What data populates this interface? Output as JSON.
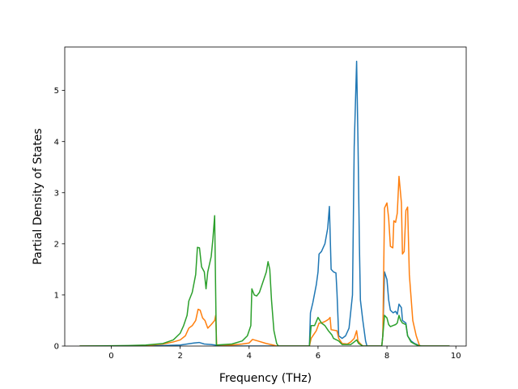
{
  "chart_data": {
    "type": "line",
    "title": "",
    "xlabel": "Frequency (THz)",
    "ylabel": "Partial Density of States",
    "xlim": [
      -1.35,
      10.3
    ],
    "ylim": [
      0,
      5.85
    ],
    "xticks": [
      0,
      2,
      4,
      6,
      8,
      10
    ],
    "yticks": [
      0,
      1,
      2,
      3,
      4,
      5
    ],
    "grid": false,
    "legend": "none",
    "series": [
      {
        "color": "#1f77b4",
        "points": [
          [
            -0.9,
            0
          ],
          [
            1.0,
            0.0
          ],
          [
            1.5,
            0.01
          ],
          [
            2.0,
            0.02
          ],
          [
            2.2,
            0.04
          ],
          [
            2.4,
            0.06
          ],
          [
            2.55,
            0.07
          ],
          [
            2.7,
            0.04
          ],
          [
            2.9,
            0.03
          ],
          [
            3.02,
            0.02
          ],
          [
            3.05,
            0
          ],
          [
            3.4,
            0
          ],
          [
            4.0,
            0
          ],
          [
            4.4,
            0
          ],
          [
            4.8,
            0
          ],
          [
            5.75,
            0
          ],
          [
            5.78,
            0.65
          ],
          [
            5.85,
            0.85
          ],
          [
            5.95,
            1.2
          ],
          [
            6.0,
            1.45
          ],
          [
            6.03,
            1.8
          ],
          [
            6.1,
            1.85
          ],
          [
            6.2,
            2.0
          ],
          [
            6.28,
            2.3
          ],
          [
            6.33,
            2.73
          ],
          [
            6.38,
            1.5
          ],
          [
            6.45,
            1.45
          ],
          [
            6.52,
            1.43
          ],
          [
            6.55,
            1.05
          ],
          [
            6.6,
            0.2
          ],
          [
            6.7,
            0.15
          ],
          [
            6.8,
            0.2
          ],
          [
            6.9,
            0.35
          ],
          [
            7.0,
            1.0
          ],
          [
            7.05,
            3.9
          ],
          [
            7.12,
            5.57
          ],
          [
            7.16,
            4.0
          ],
          [
            7.2,
            2.0
          ],
          [
            7.23,
            0.9
          ],
          [
            7.3,
            0.5
          ],
          [
            7.38,
            0.1
          ],
          [
            7.42,
            0
          ],
          [
            7.85,
            0
          ],
          [
            7.88,
            0.2
          ],
          [
            7.93,
            1.45
          ],
          [
            8.0,
            1.3
          ],
          [
            8.05,
            0.9
          ],
          [
            8.1,
            0.7
          ],
          [
            8.18,
            0.65
          ],
          [
            8.25,
            0.68
          ],
          [
            8.3,
            0.62
          ],
          [
            8.35,
            0.82
          ],
          [
            8.42,
            0.75
          ],
          [
            8.45,
            0.5
          ],
          [
            8.55,
            0.45
          ],
          [
            8.6,
            0.2
          ],
          [
            8.7,
            0.1
          ],
          [
            8.8,
            0.05
          ],
          [
            8.9,
            0.02
          ],
          [
            9.0,
            0
          ],
          [
            9.8,
            0
          ]
        ]
      },
      {
        "color": "#ff7f0e",
        "points": [
          [
            -0.9,
            0
          ],
          [
            0.5,
            0.0
          ],
          [
            1.0,
            0.01
          ],
          [
            1.5,
            0.04
          ],
          [
            1.8,
            0.08
          ],
          [
            2.0,
            0.12
          ],
          [
            2.15,
            0.2
          ],
          [
            2.25,
            0.35
          ],
          [
            2.35,
            0.4
          ],
          [
            2.45,
            0.5
          ],
          [
            2.52,
            0.72
          ],
          [
            2.58,
            0.7
          ],
          [
            2.65,
            0.55
          ],
          [
            2.72,
            0.5
          ],
          [
            2.8,
            0.35
          ],
          [
            2.9,
            0.42
          ],
          [
            3.0,
            0.5
          ],
          [
            3.03,
            0.6
          ],
          [
            3.06,
            0.02
          ],
          [
            3.5,
            0.02
          ],
          [
            3.8,
            0.04
          ],
          [
            4.0,
            0.06
          ],
          [
            4.1,
            0.13
          ],
          [
            4.25,
            0.1
          ],
          [
            4.5,
            0.05
          ],
          [
            4.7,
            0.02
          ],
          [
            4.8,
            0
          ],
          [
            5.75,
            0
          ],
          [
            5.8,
            0.15
          ],
          [
            5.95,
            0.3
          ],
          [
            6.03,
            0.45
          ],
          [
            6.1,
            0.45
          ],
          [
            6.2,
            0.48
          ],
          [
            6.3,
            0.52
          ],
          [
            6.35,
            0.56
          ],
          [
            6.38,
            0.32
          ],
          [
            6.55,
            0.3
          ],
          [
            6.6,
            0.15
          ],
          [
            6.7,
            0.05
          ],
          [
            6.85,
            0.04
          ],
          [
            6.95,
            0.08
          ],
          [
            7.05,
            0.15
          ],
          [
            7.12,
            0.3
          ],
          [
            7.16,
            0.1
          ],
          [
            7.22,
            0.05
          ],
          [
            7.3,
            0
          ],
          [
            7.85,
            0
          ],
          [
            7.88,
            0.2
          ],
          [
            7.93,
            2.7
          ],
          [
            8.0,
            2.8
          ],
          [
            8.05,
            2.5
          ],
          [
            8.1,
            1.95
          ],
          [
            8.17,
            1.92
          ],
          [
            8.2,
            2.45
          ],
          [
            8.25,
            2.42
          ],
          [
            8.3,
            2.6
          ],
          [
            8.35,
            3.32
          ],
          [
            8.42,
            2.8
          ],
          [
            8.45,
            1.8
          ],
          [
            8.5,
            1.85
          ],
          [
            8.55,
            2.65
          ],
          [
            8.6,
            2.72
          ],
          [
            8.65,
            1.4
          ],
          [
            8.75,
            0.5
          ],
          [
            8.85,
            0.2
          ],
          [
            8.95,
            0
          ],
          [
            9.8,
            0
          ]
        ]
      },
      {
        "color": "#2ca02c",
        "points": [
          [
            -0.9,
            0
          ],
          [
            0.5,
            0.01
          ],
          [
            1.0,
            0.02
          ],
          [
            1.5,
            0.05
          ],
          [
            1.8,
            0.12
          ],
          [
            2.0,
            0.25
          ],
          [
            2.1,
            0.4
          ],
          [
            2.2,
            0.6
          ],
          [
            2.25,
            0.88
          ],
          [
            2.35,
            1.05
          ],
          [
            2.45,
            1.4
          ],
          [
            2.5,
            1.93
          ],
          [
            2.56,
            1.92
          ],
          [
            2.62,
            1.55
          ],
          [
            2.7,
            1.45
          ],
          [
            2.75,
            1.12
          ],
          [
            2.8,
            1.45
          ],
          [
            2.9,
            1.75
          ],
          [
            2.95,
            2.1
          ],
          [
            3.0,
            2.55
          ],
          [
            3.05,
            0.02
          ],
          [
            3.5,
            0.04
          ],
          [
            3.8,
            0.1
          ],
          [
            3.95,
            0.2
          ],
          [
            4.05,
            0.4
          ],
          [
            4.08,
            1.12
          ],
          [
            4.15,
            1.0
          ],
          [
            4.22,
            0.98
          ],
          [
            4.3,
            1.05
          ],
          [
            4.4,
            1.25
          ],
          [
            4.5,
            1.45
          ],
          [
            4.55,
            1.65
          ],
          [
            4.6,
            1.5
          ],
          [
            4.65,
            0.9
          ],
          [
            4.72,
            0.3
          ],
          [
            4.8,
            0.05
          ],
          [
            4.85,
            0
          ],
          [
            5.75,
            0
          ],
          [
            5.8,
            0.4
          ],
          [
            5.9,
            0.4
          ],
          [
            6.0,
            0.56
          ],
          [
            6.1,
            0.45
          ],
          [
            6.2,
            0.4
          ],
          [
            6.3,
            0.3
          ],
          [
            6.4,
            0.22
          ],
          [
            6.45,
            0.15
          ],
          [
            6.6,
            0.1
          ],
          [
            6.7,
            0.03
          ],
          [
            6.95,
            0.03
          ],
          [
            7.05,
            0.08
          ],
          [
            7.12,
            0.12
          ],
          [
            7.18,
            0.05
          ],
          [
            7.3,
            0
          ],
          [
            7.85,
            0
          ],
          [
            7.88,
            0.2
          ],
          [
            7.93,
            0.6
          ],
          [
            8.0,
            0.55
          ],
          [
            8.05,
            0.42
          ],
          [
            8.1,
            0.38
          ],
          [
            8.17,
            0.4
          ],
          [
            8.25,
            0.42
          ],
          [
            8.3,
            0.45
          ],
          [
            8.35,
            0.6
          ],
          [
            8.4,
            0.5
          ],
          [
            8.45,
            0.45
          ],
          [
            8.55,
            0.42
          ],
          [
            8.6,
            0.2
          ],
          [
            8.7,
            0.08
          ],
          [
            8.8,
            0.04
          ],
          [
            8.9,
            0.01
          ],
          [
            9.0,
            0
          ],
          [
            9.8,
            0
          ]
        ]
      }
    ]
  }
}
